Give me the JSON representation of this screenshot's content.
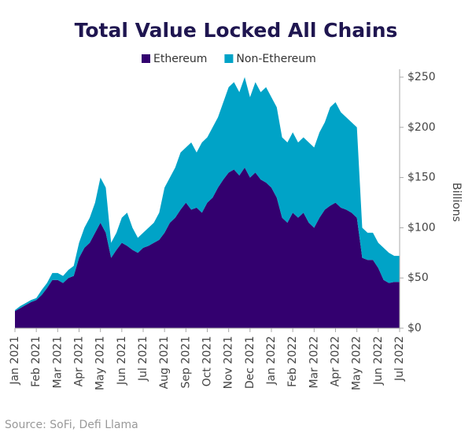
{
  "chart_data": {
    "type": "stacked_area",
    "title": "Total Value Locked All Chains",
    "y_axis_label": "Billions",
    "source": "Source: SoFi, Defi Llama",
    "categories": [
      "Jan 2021",
      null,
      null,
      null,
      "Feb 2021",
      null,
      null,
      null,
      "Mar 2021",
      null,
      null,
      null,
      "Apr 2021",
      null,
      null,
      null,
      "May 2021",
      null,
      null,
      null,
      "Jun 2021",
      null,
      null,
      null,
      "Jul 2021",
      null,
      null,
      null,
      "Aug 2021",
      null,
      null,
      null,
      "Sep 2021",
      null,
      null,
      null,
      "Oct 2021",
      null,
      null,
      null,
      "Nov 2021",
      null,
      null,
      null,
      "Dec 2021",
      null,
      null,
      null,
      "Jan 2022",
      null,
      null,
      null,
      "Feb 2022",
      null,
      null,
      null,
      "Mar 2022",
      null,
      null,
      null,
      "Apr 2022",
      null,
      null,
      null,
      "May 2022",
      null,
      null,
      null,
      "Jun 2022",
      null,
      null,
      null,
      "Jul 2022"
    ],
    "series": [
      {
        "name": "Ethereum",
        "color": "#33006f",
        "values": [
          17,
          20,
          23,
          26,
          28,
          33,
          40,
          48,
          48,
          45,
          50,
          52,
          70,
          80,
          85,
          95,
          105,
          95,
          70,
          78,
          85,
          82,
          78,
          75,
          80,
          82,
          85,
          88,
          95,
          105,
          110,
          118,
          125,
          118,
          120,
          115,
          125,
          130,
          140,
          148,
          155,
          158,
          152,
          160,
          150,
          155,
          148,
          145,
          140,
          130,
          110,
          105,
          115,
          110,
          115,
          105,
          100,
          110,
          118,
          122,
          125,
          120,
          118,
          115,
          110,
          70,
          68,
          68,
          60,
          48,
          45,
          46,
          46
        ]
      },
      {
        "name": "Non-Ethereum",
        "color": "#00a3c7",
        "values": [
          1,
          2,
          2,
          2,
          2,
          5,
          5,
          7,
          7,
          7,
          8,
          10,
          15,
          20,
          25,
          30,
          45,
          45,
          15,
          17,
          25,
          33,
          22,
          15,
          15,
          18,
          20,
          27,
          45,
          45,
          50,
          57,
          55,
          67,
          55,
          70,
          65,
          70,
          70,
          77,
          85,
          87,
          83,
          90,
          80,
          90,
          87,
          95,
          90,
          90,
          80,
          80,
          80,
          75,
          75,
          80,
          80,
          85,
          87,
          98,
          100,
          95,
          92,
          90,
          90,
          30,
          27,
          27,
          25,
          32,
          30,
          26,
          26
        ]
      }
    ],
    "ylim": [
      0,
      250
    ],
    "yticks": [
      {
        "value": 0,
        "label": "$0"
      },
      {
        "value": 50,
        "label": "$50"
      },
      {
        "value": 100,
        "label": "$100"
      },
      {
        "value": 150,
        "label": "$150"
      },
      {
        "value": 200,
        "label": "$200"
      },
      {
        "value": 250,
        "label": "$250"
      }
    ],
    "legend": "top"
  }
}
